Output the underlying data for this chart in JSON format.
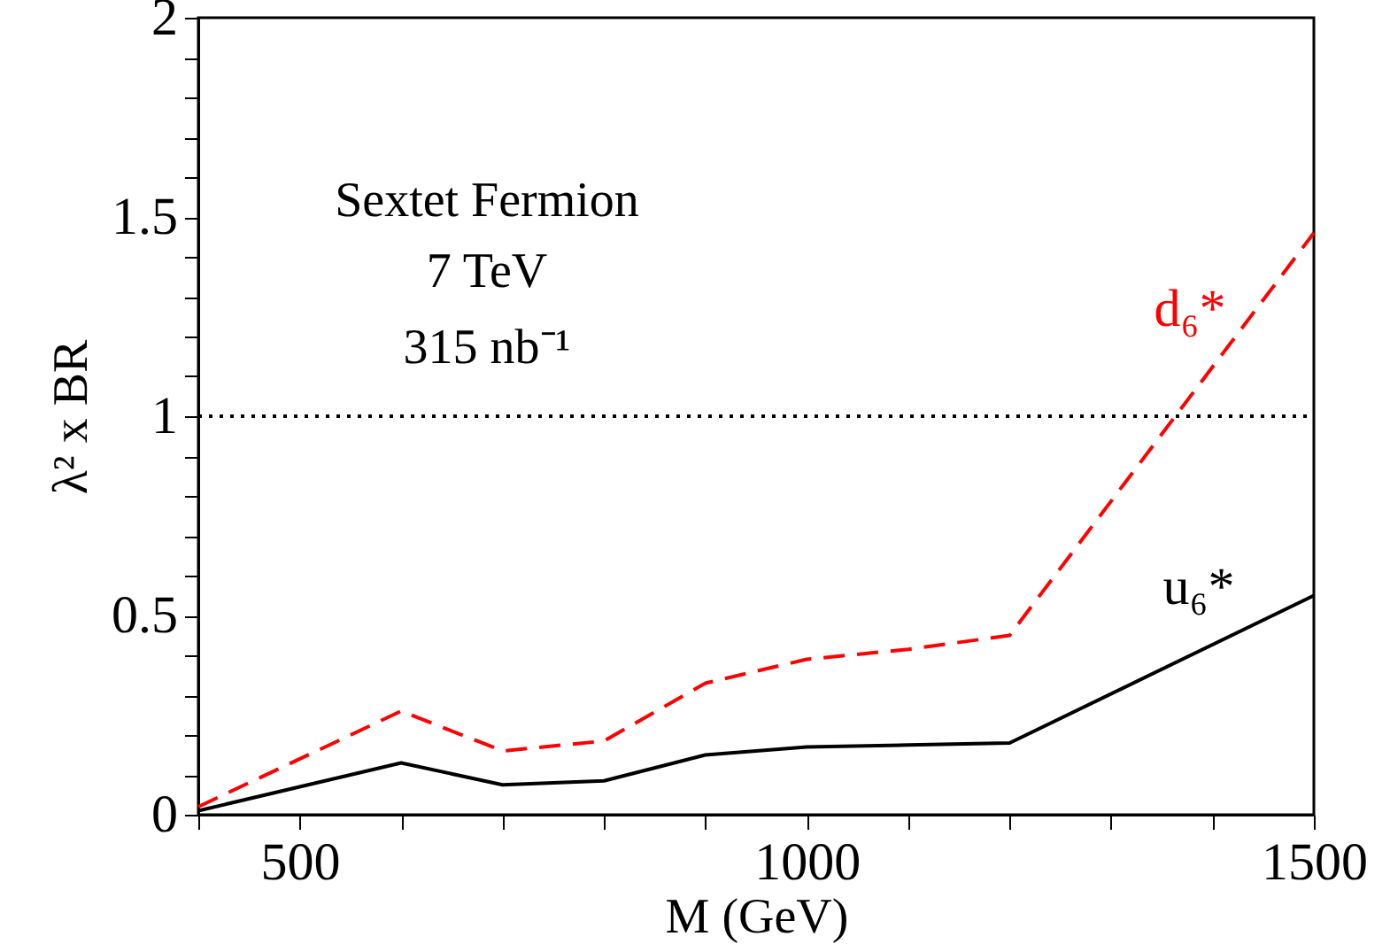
{
  "chart_data": {
    "type": "line",
    "xlabel": "M (GeV)",
    "ylabel": "λ² x BR",
    "x": [
      400,
      600,
      700,
      800,
      900,
      1000,
      1100,
      1200,
      1500
    ],
    "series": [
      {
        "name": "d₆*",
        "color": "#ff0000",
        "line_style": "dashed",
        "values": [
          0.02,
          0.26,
          0.16,
          0.185,
          0.33,
          0.39,
          0.415,
          0.45,
          1.46
        ]
      },
      {
        "name": "u₆*",
        "color": "#000000",
        "line_style": "solid",
        "values": [
          0.01,
          0.13,
          0.075,
          0.085,
          0.15,
          0.17,
          0.175,
          0.18,
          0.55
        ]
      }
    ],
    "xlim": [
      400,
      1500
    ],
    "xticks": [
      {
        "value": 400,
        "label": null
      },
      500,
      {
        "value": 600,
        "label": null
      },
      {
        "value": 700,
        "label": null
      },
      {
        "value": 800,
        "label": null
      },
      {
        "value": 900,
        "label": null
      },
      1000,
      {
        "value": 1100,
        "label": null
      },
      {
        "value": 1200,
        "label": null
      },
      {
        "value": 1300,
        "label": null
      },
      {
        "value": 1400,
        "label": null
      },
      1500
    ],
    "ylim": [
      0,
      2
    ],
    "yticks": [
      0,
      {
        "value": 0.1,
        "label": null
      },
      {
        "value": 0.2,
        "label": null
      },
      {
        "value": 0.3,
        "label": null
      },
      {
        "value": 0.4,
        "label": null
      },
      0.5,
      {
        "value": 0.6,
        "label": null
      },
      {
        "value": 0.7,
        "label": null
      },
      {
        "value": 0.8,
        "label": null
      },
      {
        "value": 0.9,
        "label": null
      },
      1,
      {
        "value": 1.1,
        "label": null
      },
      {
        "value": 1.2,
        "label": null
      },
      {
        "value": 1.3,
        "label": null
      },
      {
        "value": 1.4,
        "label": null
      },
      1.5,
      {
        "value": 1.6,
        "label": null
      },
      {
        "value": 1.7,
        "label": null
      },
      {
        "value": 1.8,
        "label": null
      },
      {
        "value": 1.9,
        "label": null
      },
      2
    ],
    "ref_lines": [
      {
        "axis": "y",
        "value": 1,
        "color": "#000000",
        "line_style": "dotted"
      }
    ],
    "annotations": [
      "Sextet Fermion",
      "7 TeV",
      "315 nb⁻¹"
    ],
    "grid": false
  }
}
